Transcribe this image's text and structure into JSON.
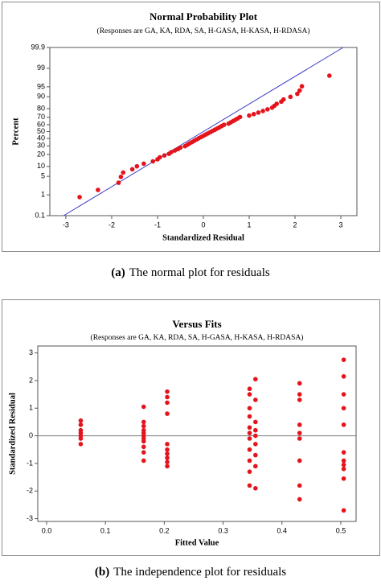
{
  "chart_data": [
    {
      "type": "scatter",
      "title": "Normal Probability Plot",
      "subtitle": "(Responses are GA, KA, RDA, SA, H-GASA, H-KASA, H-RDASA)",
      "x_label": "Standardized Residual",
      "y_label": "Percent",
      "caption_label": "(a)",
      "caption": "The normal plot for residuals",
      "y_scale": "probit",
      "color": "#e3141c",
      "line_color": "#3a3acc",
      "xlim": [
        -3.35,
        3.35
      ],
      "xticks": [
        -3,
        -2,
        -1,
        0,
        1,
        2,
        3
      ],
      "ylim": [
        0.1,
        99.9
      ],
      "yticks": [
        0.1,
        1,
        5,
        10,
        20,
        30,
        40,
        50,
        60,
        70,
        80,
        90,
        95,
        99,
        99.9
      ],
      "fit_line": {
        "x": [
          -3.05,
          3.05
        ],
        "y": [
          0.1,
          99.9
        ]
      },
      "x": [
        -2.7,
        -2.3,
        -1.85,
        -1.8,
        -1.75,
        -1.55,
        -1.45,
        -1.3,
        -1.1,
        -1.0,
        -0.95,
        -0.85,
        -0.75,
        -0.7,
        -0.62,
        -0.55,
        -0.5,
        -0.4,
        -0.35,
        -0.3,
        -0.25,
        -0.2,
        -0.15,
        -0.1,
        -0.05,
        0.0,
        0.05,
        0.1,
        0.15,
        0.2,
        0.25,
        0.3,
        0.35,
        0.4,
        0.45,
        0.55,
        0.6,
        0.65,
        0.7,
        0.75,
        0.8,
        1.0,
        1.1,
        1.2,
        1.3,
        1.4,
        1.5,
        1.55,
        1.6,
        1.7,
        1.75,
        1.9,
        2.05,
        2.1,
        2.15,
        2.75
      ],
      "values": [
        0.8,
        1.6,
        3.0,
        4.8,
        6.6,
        8.3,
        10.1,
        11.9,
        13.7,
        15.4,
        17.2,
        19.0,
        20.7,
        22.5,
        24.3,
        26.1,
        27.8,
        29.6,
        31.4,
        33.2,
        34.9,
        36.7,
        38.5,
        40.3,
        42.0,
        43.8,
        45.6,
        47.3,
        49.1,
        50.9,
        52.7,
        54.4,
        56.2,
        58.0,
        59.8,
        61.5,
        63.3,
        65.1,
        66.8,
        68.6,
        70.4,
        72.2,
        73.9,
        75.7,
        77.5,
        79.3,
        81.0,
        82.8,
        84.6,
        86.4,
        88.1,
        89.9,
        91.7,
        93.4,
        95.2,
        98.0
      ]
    },
    {
      "type": "scatter",
      "title": "Versus Fits",
      "subtitle": "(Responses are GA, KA, RDA, SA, H-GASA, H-KASA, H-RDASA)",
      "x_label": "Fitted Value",
      "y_label": "Standardized Residual",
      "caption_label": "(b)",
      "caption": "The independence plot for residuals",
      "y_scale": "linear",
      "color": "#e3141c",
      "hline": 0,
      "xlim": [
        -0.015,
        0.526
      ],
      "xticks": [
        {
          "value": 0,
          "label": "0.0"
        },
        0.1,
        0.2,
        0.3,
        0.4,
        0.5
      ],
      "ylim": [
        -3.1,
        3.25
      ],
      "yticks": [
        -3,
        -2,
        -1,
        0,
        1,
        2,
        3
      ],
      "x": [
        0.058,
        0.058,
        0.058,
        0.058,
        0.058,
        0.058,
        0.058,
        0.165,
        0.165,
        0.165,
        0.165,
        0.165,
        0.165,
        0.165,
        0.165,
        0.165,
        0.165,
        0.165,
        0.205,
        0.205,
        0.205,
        0.205,
        0.205,
        0.205,
        0.205,
        0.205,
        0.205,
        0.205,
        0.355,
        0.345,
        0.345,
        0.355,
        0.345,
        0.345,
        0.355,
        0.345,
        0.355,
        0.345,
        0.355,
        0.345,
        0.355,
        0.345,
        0.355,
        0.345,
        0.355,
        0.345,
        0.345,
        0.355,
        0.43,
        0.43,
        0.43,
        0.43,
        0.43,
        0.43,
        0.43,
        0.43,
        0.43,
        0.505,
        0.505,
        0.505,
        0.505,
        0.505,
        0.505,
        0.505,
        0.505,
        0.505,
        0.505,
        0.505
      ],
      "values": [
        0.55,
        0.4,
        0.2,
        0.1,
        0.0,
        -0.1,
        -0.3,
        1.05,
        0.5,
        0.35,
        0.2,
        0.1,
        0.0,
        -0.1,
        -0.2,
        -0.4,
        -0.6,
        -0.9,
        1.6,
        1.4,
        1.2,
        0.8,
        -0.3,
        -0.5,
        -0.65,
        -0.8,
        -0.95,
        -1.1,
        2.05,
        1.7,
        1.5,
        1.3,
        1.0,
        0.7,
        0.5,
        0.3,
        0.2,
        0.1,
        0.0,
        -0.1,
        -0.3,
        -0.5,
        -0.7,
        -0.9,
        -1.1,
        -1.3,
        -1.8,
        -1.9,
        1.9,
        1.5,
        1.3,
        0.4,
        0.1,
        -0.1,
        -0.9,
        -1.8,
        -2.3,
        2.75,
        2.15,
        1.5,
        1.0,
        0.4,
        -0.6,
        -0.9,
        -1.05,
        -1.2,
        -1.55,
        -2.7
      ]
    }
  ]
}
